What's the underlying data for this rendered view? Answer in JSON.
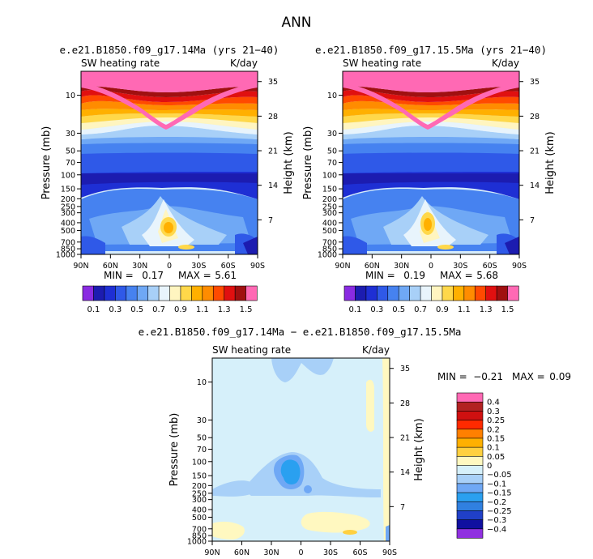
{
  "main_title": "ANN",
  "colors": {
    "ann_bar": [
      "#8a2be2",
      "#1c1cb0",
      "#1e2fd4",
      "#2f59e8",
      "#4682f0",
      "#6fa8f5",
      "#a8d0f8",
      "#e8f4fc",
      "#fff5c0",
      "#ffd84a",
      "#ffb000",
      "#ff8c00",
      "#ff4a00",
      "#e01010",
      "#a01010",
      "#ff69b4"
    ],
    "diff_bar": [
      "#ff69b4",
      "#b22222",
      "#d01010",
      "#ff2a00",
      "#ff8000",
      "#ffb000",
      "#ffd040",
      "#fff8c0",
      "#d6f0fa",
      "#a8d0f8",
      "#6fa8f5",
      "#2aa0f0",
      "#3080e0",
      "#2040c8",
      "#1010a0",
      "#9030e0"
    ]
  },
  "chart_data": [
    {
      "type": "heatmap",
      "title": "e.e21.B1850.f09_g17.14Ma (yrs 21−40)",
      "left_label": "SW heating rate",
      "right_label": "K/day",
      "ylabel": "Pressure (mb)",
      "y2label": "Height (km)",
      "xticks": [
        "90N",
        "60N",
        "30N",
        "0",
        "30S",
        "60S",
        "90S"
      ],
      "yticks": [
        "10",
        "30",
        "50",
        "70",
        "100",
        "150",
        "200",
        "250",
        "300",
        "400",
        "500",
        "700",
        "850",
        "1000"
      ],
      "y2ticks": [
        "35",
        "28",
        "21",
        "14",
        "7"
      ],
      "ylim": [
        1000,
        5
      ],
      "stats": {
        "min_label": "MIN =",
        "min": "0.17",
        "max_label": "MAX =",
        "max": "5.61"
      },
      "colorbar_labels": [
        "0.1",
        "0.3",
        "0.5",
        "0.7",
        "0.9",
        "1.1",
        "1.3",
        "1.5"
      ]
    },
    {
      "type": "heatmap",
      "title": "e.e21.B1850.f09_g17.15.5Ma (yrs 21−40)",
      "left_label": "SW heating rate",
      "right_label": "K/day",
      "ylabel": "Pressure (mb)",
      "y2label": "Height (km)",
      "xticks": [
        "90N",
        "60N",
        "30N",
        "0",
        "30S",
        "60S",
        "90S"
      ],
      "yticks": [
        "10",
        "30",
        "50",
        "70",
        "100",
        "150",
        "200",
        "250",
        "300",
        "400",
        "500",
        "700",
        "850",
        "1000"
      ],
      "y2ticks": [
        "35",
        "28",
        "21",
        "14",
        "7"
      ],
      "ylim": [
        1000,
        5
      ],
      "stats": {
        "min_label": "MIN =",
        "min": "0.19",
        "max_label": "MAX =",
        "max": "5.68"
      },
      "colorbar_labels": [
        "0.1",
        "0.3",
        "0.5",
        "0.7",
        "0.9",
        "1.1",
        "1.3",
        "1.5"
      ]
    },
    {
      "type": "heatmap",
      "title": "e.e21.B1850.f09_g17.14Ma − e.e21.B1850.f09_g17.15.5Ma",
      "left_label": "SW heating rate",
      "right_label": "K/day",
      "ylabel": "Pressure (mb)",
      "y2label": "Height (km)",
      "xticks": [
        "90N",
        "60N",
        "30N",
        "0",
        "30S",
        "60S",
        "90S"
      ],
      "yticks": [
        "10",
        "30",
        "50",
        "70",
        "100",
        "150",
        "200",
        "250",
        "300",
        "400",
        "500",
        "700",
        "850",
        "1000"
      ],
      "y2ticks": [
        "35",
        "28",
        "21",
        "14",
        "7"
      ],
      "ylim": [
        1000,
        5
      ],
      "stats": {
        "min_label": "MIN =",
        "min": "−0.21",
        "max_label": "MAX =",
        "max": "0.09"
      },
      "colorbar_labels": [
        "0.4",
        "0.3",
        "0.25",
        "0.2",
        "0.15",
        "0.1",
        "0.05",
        "0",
        "−0.05",
        "−0.1",
        "−0.15",
        "−0.2",
        "−0.25",
        "−0.3",
        "−0.4"
      ]
    }
  ]
}
